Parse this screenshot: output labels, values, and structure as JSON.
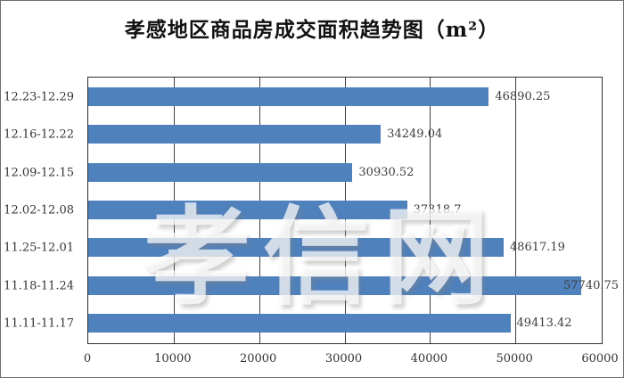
{
  "chart": {
    "title": "孝感地区商品房成交面积趋势图（m²）",
    "watermark": "孝信网"
  },
  "chart_data": {
    "type": "bar",
    "orientation": "horizontal",
    "title": "孝感地区商品房成交面积趋势图（m²）",
    "categories": [
      "12.23-12.29",
      "12.16-12.22",
      "12.09-12.15",
      "12.02-12.08",
      "11.25-12.01",
      "11.18-11.24",
      "11.11-11.17"
    ],
    "values": [
      46890.25,
      34249.04,
      30930.52,
      37318.7,
      48617.19,
      57740.75,
      49413.42
    ],
    "value_labels": [
      "46890.25",
      "34249.04",
      "30930.52",
      "37318.7",
      "48617.19",
      "57740.75",
      "49413.42"
    ],
    "xlabel": "",
    "ylabel": "",
    "xlim": [
      0,
      60000
    ],
    "x_ticks": [
      0,
      10000,
      20000,
      30000,
      40000,
      50000,
      60000
    ],
    "x_tick_labels": [
      "0",
      "10000",
      "20000",
      "30000",
      "40000",
      "50000",
      "60000"
    ],
    "grid": "vertical-only",
    "legend": false,
    "bar_color": "#4f81bd",
    "gridline_color": "#3f3f3f",
    "watermark": "孝信网"
  }
}
